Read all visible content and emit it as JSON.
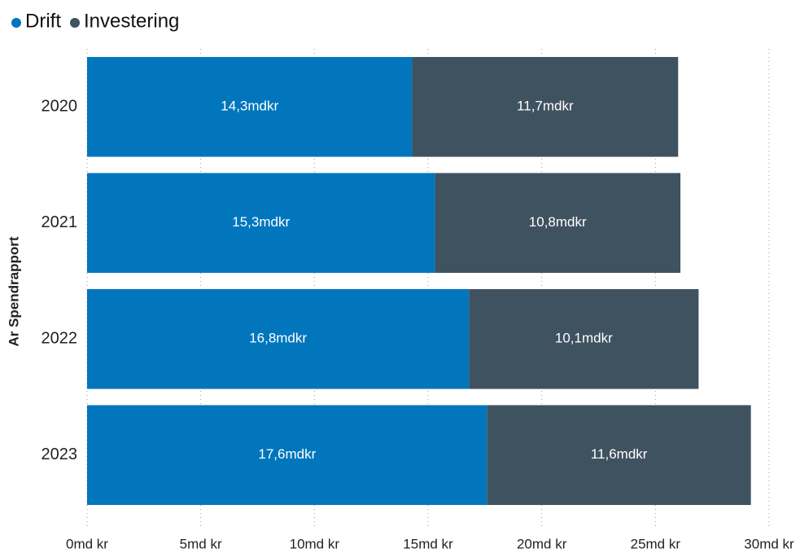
{
  "chart_data": {
    "type": "stacked_barh",
    "y_label": "Ar Spendrapport",
    "categories": [
      "2020",
      "2021",
      "2022",
      "2023"
    ],
    "series": [
      {
        "name": "Drift",
        "color": "#0176bd",
        "values": [
          14.3,
          15.3,
          16.8,
          17.6
        ],
        "value_labels": [
          "14,3mdkr",
          "15,3mdkr",
          "16,8mdkr",
          "17,6mdkr"
        ]
      },
      {
        "name": "Investering",
        "color": "#3f5260",
        "values": [
          11.7,
          10.8,
          10.1,
          11.6
        ],
        "value_labels": [
          "11,7mdkr",
          "10,8mdkr",
          "10,1mdkr",
          "11,6mdkr"
        ]
      }
    ],
    "xlim": [
      0,
      30
    ],
    "xticks": [
      {
        "value": 0,
        "label": "0md kr"
      },
      {
        "value": 5,
        "label": "5md kr"
      },
      {
        "value": 10,
        "label": "10md kr"
      },
      {
        "value": 15,
        "label": "15md kr"
      },
      {
        "value": 20,
        "label": "20md kr"
      },
      {
        "value": 25,
        "label": "25md kr"
      },
      {
        "value": 30,
        "label": "30md kr"
      }
    ],
    "grid": true,
    "legend": "top-left"
  }
}
